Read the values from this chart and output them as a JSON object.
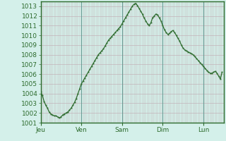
{
  "title": "",
  "ylabel": "",
  "xlabel": "",
  "background_color": "#d4f0ea",
  "plot_bg_color": "#d4f0ea",
  "line_color": "#2d6b2d",
  "marker_color": "#2d6b2d",
  "ylim": [
    1001,
    1013.5
  ],
  "yticks": [
    1001,
    1002,
    1003,
    1004,
    1005,
    1006,
    1007,
    1008,
    1009,
    1010,
    1011,
    1012,
    1013
  ],
  "day_labels": [
    "Jeu",
    "Ven",
    "Sam",
    "Dim",
    "Lun"
  ],
  "day_positions": [
    0,
    24,
    48,
    72,
    96
  ],
  "total_hours": 108,
  "pressure_values": [
    1004.2,
    1003.8,
    1003.2,
    1002.8,
    1002.5,
    1002.1,
    1001.9,
    1001.8,
    1001.7,
    1001.7,
    1001.6,
    1001.5,
    1001.6,
    1001.8,
    1001.9,
    1002.0,
    1002.1,
    1002.3,
    1002.5,
    1002.8,
    1003.1,
    1003.5,
    1004.0,
    1004.5,
    1005.0,
    1005.3,
    1005.6,
    1005.9,
    1006.2,
    1006.5,
    1006.8,
    1007.1,
    1007.4,
    1007.7,
    1008.0,
    1008.2,
    1008.4,
    1008.6,
    1008.9,
    1009.2,
    1009.5,
    1009.7,
    1009.9,
    1010.1,
    1010.3,
    1010.5,
    1010.7,
    1010.9,
    1011.2,
    1011.5,
    1011.8,
    1012.1,
    1012.4,
    1012.7,
    1013.0,
    1013.2,
    1013.3,
    1013.1,
    1012.8,
    1012.5,
    1012.2,
    1011.8,
    1011.5,
    1011.2,
    1011.0,
    1011.3,
    1011.8,
    1012.0,
    1012.2,
    1012.1,
    1011.8,
    1011.5,
    1011.0,
    1010.6,
    1010.3,
    1010.1,
    1010.2,
    1010.4,
    1010.5,
    1010.3,
    1010.0,
    1009.7,
    1009.4,
    1009.0,
    1008.7,
    1008.5,
    1008.4,
    1008.3,
    1008.2,
    1008.1,
    1008.0,
    1007.8,
    1007.6,
    1007.4,
    1007.2,
    1007.0,
    1006.8,
    1006.6,
    1006.4,
    1006.2,
    1006.1,
    1006.1,
    1006.2,
    1006.3,
    1006.1,
    1005.8,
    1005.5,
    1006.2
  ],
  "major_vline_color": "#6a9a94",
  "minor_vline_color": "#c0a8b0",
  "hline_color": "#c0a8b0",
  "tick_color": "#2d6b2d",
  "tick_fontsize": 6.5,
  "axis_color": "#2d6b2d",
  "border_color": "#2d6b2d"
}
